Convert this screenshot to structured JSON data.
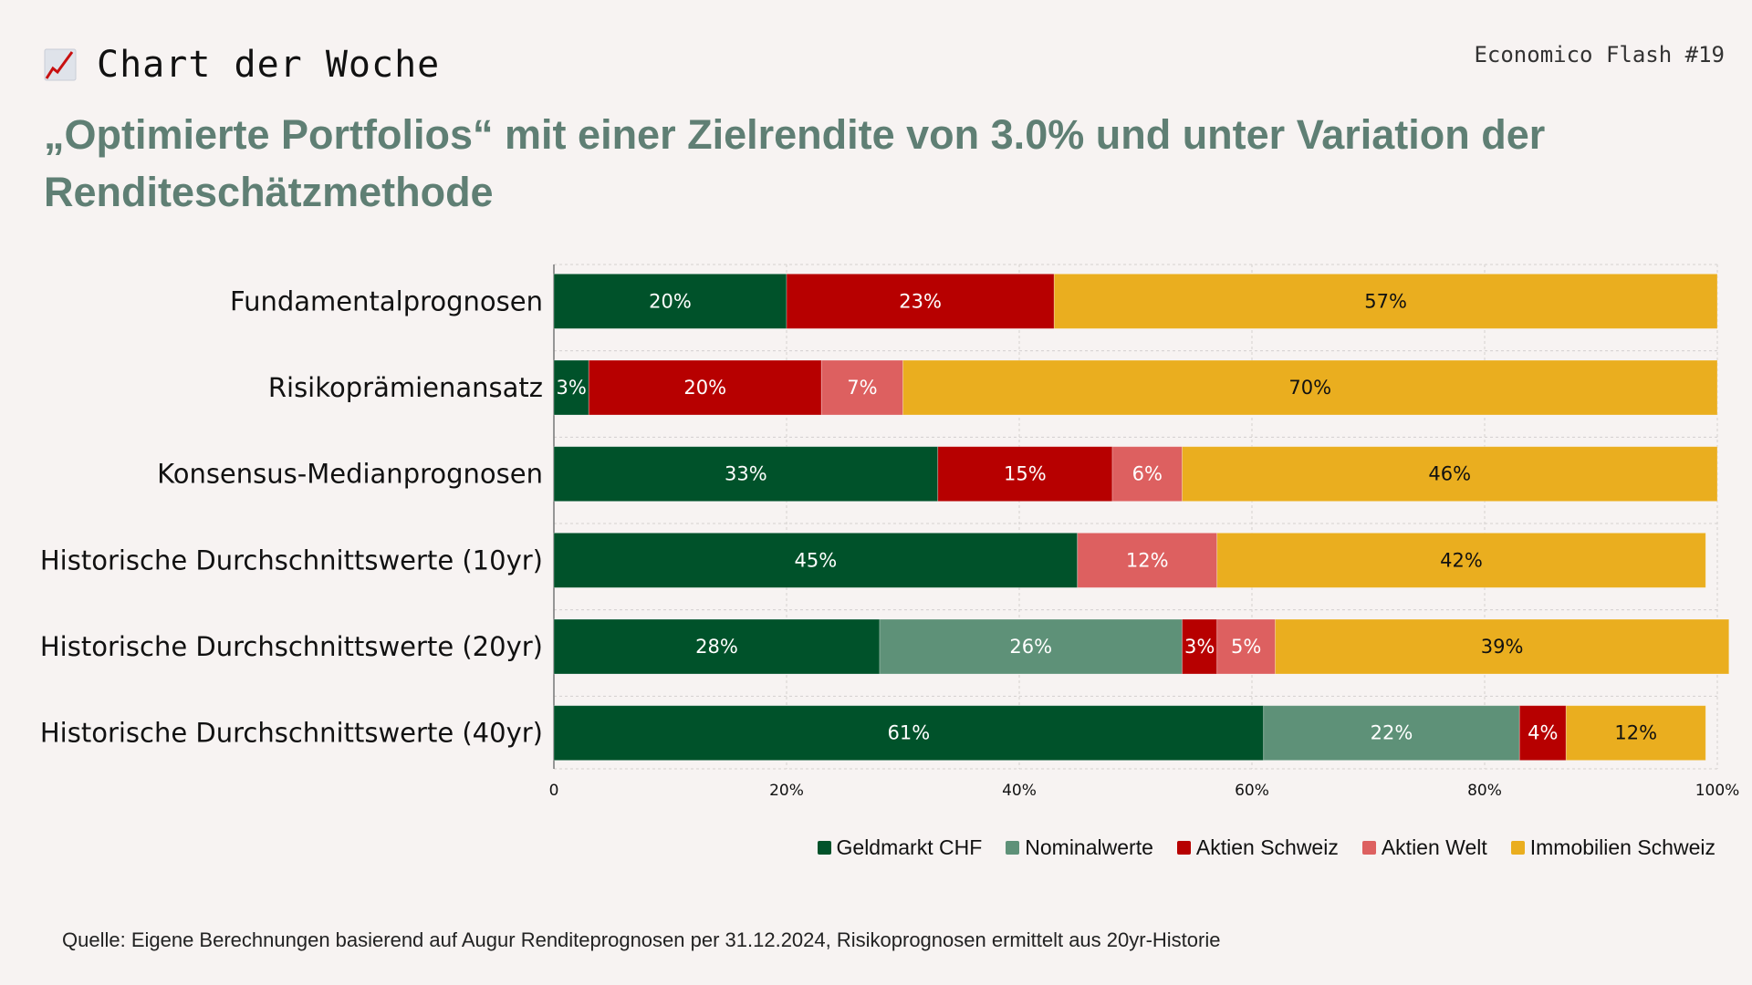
{
  "header": {
    "kicker_icon": "chart-increasing-icon",
    "kicker": "Chart der Woche",
    "issue": "Economico Flash #19",
    "title": "„Optimierte Portfolios“ mit einer Zielrendite von 3.0% und unter Variation der Renditeschätzmethode"
  },
  "chart_data": {
    "type": "bar",
    "orientation": "horizontal",
    "stacked": true,
    "title": "„Optimierte Portfolios“ mit einer Zielrendite von 3.0% und unter Variation der Renditeschätzmethode",
    "xlabel": "",
    "ylabel": "",
    "xlim": [
      0,
      100
    ],
    "x_ticks": [
      "0",
      "20%",
      "40%",
      "60%",
      "80%",
      "100%"
    ],
    "grid": true,
    "legend_position": "bottom-right",
    "categories": [
      "Fundamentalprognosen",
      "Risikoprämienansatz",
      "Konsensus-Medianprognosen",
      "Historische Durchschnittswerte (10yr)",
      "Historische Durchschnittswerte (20yr)",
      "Historische Durchschnittswerte (40yr)"
    ],
    "series": [
      {
        "name": "Geldmarkt CHF",
        "color": "#00522a",
        "label_color": "#ffffff",
        "values": [
          20,
          3,
          33,
          45,
          28,
          61
        ]
      },
      {
        "name": "Nominalwerte",
        "color": "#5e9178",
        "label_color": "#ffffff",
        "values": [
          0,
          0,
          0,
          0,
          26,
          22
        ]
      },
      {
        "name": "Aktien Schweiz",
        "color": "#b70000",
        "label_color": "#ffffff",
        "values": [
          23,
          20,
          15,
          0,
          3,
          4
        ]
      },
      {
        "name": "Aktien Welt",
        "color": "#dd6060",
        "label_color": "#ffffff",
        "values": [
          0,
          7,
          6,
          12,
          5,
          0
        ]
      },
      {
        "name": "Immobilien Schweiz",
        "color": "#eaae1f",
        "label_color": "#111111",
        "values": [
          57,
          70,
          46,
          42,
          39,
          12
        ]
      }
    ]
  },
  "source": "Quelle: Eigene Berechnungen basierend auf Augur Renditeprognosen per 31.12.2024, Risikoprognosen ermittelt aus 20yr-Historie"
}
